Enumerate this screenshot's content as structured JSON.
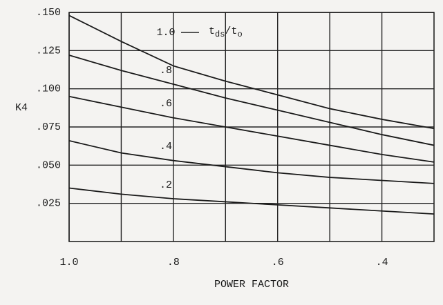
{
  "chart_data": {
    "type": "line",
    "y_label": "K4",
    "x_label": "POWER FACTOR",
    "annotation": [
      "t",
      "ds",
      "/t",
      "o"
    ],
    "x": [
      1.0,
      0.9,
      0.8,
      0.7,
      0.6,
      0.5,
      0.4,
      0.3
    ],
    "series": [
      {
        "name": "1.0",
        "color": "#1a1a1a",
        "values": [
          0.148,
          0.131,
          0.115,
          0.105,
          0.096,
          0.087,
          0.08,
          0.074
        ]
      },
      {
        "name": ".8",
        "color": "#1a1a1a",
        "values": [
          0.122,
          0.112,
          0.103,
          0.094,
          0.086,
          0.078,
          0.07,
          0.063
        ]
      },
      {
        "name": ".6",
        "color": "#1a1a1a",
        "values": [
          0.095,
          0.088,
          0.081,
          0.075,
          0.069,
          0.063,
          0.057,
          0.052
        ]
      },
      {
        "name": ".4",
        "color": "#1a1a1a",
        "values": [
          0.066,
          0.058,
          0.053,
          0.049,
          0.045,
          0.042,
          0.04,
          0.038
        ]
      },
      {
        "name": ".2",
        "color": "#1a1a1a",
        "values": [
          0.035,
          0.031,
          0.028,
          0.026,
          0.024,
          0.022,
          0.02,
          0.018
        ]
      }
    ],
    "xlim": [
      1.0,
      0.3
    ],
    "ylim": [
      0,
      0.15
    ],
    "xticks": [
      {
        "value": 1.0,
        "label": "1.0"
      },
      {
        "value": 0.8,
        "label": ".8"
      },
      {
        "value": 0.6,
        "label": ".6"
      },
      {
        "value": 0.4,
        "label": ".4"
      }
    ],
    "xminor": [
      0.9,
      0.7,
      0.5
    ],
    "yticks": [
      {
        "value": 0.025,
        "label": ".025"
      },
      {
        "value": 0.05,
        "label": ".050"
      },
      {
        "value": 0.075,
        "label": ".075"
      },
      {
        "value": 0.1,
        "label": ".100"
      },
      {
        "value": 0.125,
        "label": ".125"
      },
      {
        "value": 0.15,
        "label": ".150"
      }
    ],
    "grid": true
  }
}
